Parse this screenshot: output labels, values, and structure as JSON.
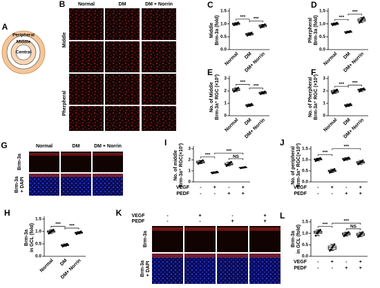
{
  "panel_A": {
    "letter": "A",
    "regions": [
      "Peripheral",
      "Middle",
      "Central"
    ]
  },
  "panel_B": {
    "letter": "B",
    "columns": [
      "Normal",
      "DM",
      "DM + Norrin"
    ],
    "rows": [
      "Middle",
      "Pherpheral"
    ]
  },
  "panel_G": {
    "letter": "G",
    "columns": [
      "Normal",
      "DM",
      "DM + Norrin"
    ],
    "rows": [
      [
        "Brm-3a"
      ],
      [
        "Brm-3a",
        "+ DAPI"
      ]
    ]
  },
  "panel_K": {
    "letter": "K",
    "conditions": [
      {
        "name": "VEGF",
        "signs": [
          "-",
          "+",
          "-",
          "+"
        ]
      },
      {
        "name": "PEDF",
        "signs": [
          "-",
          "-",
          "+",
          "+"
        ]
      }
    ],
    "rows": [
      [
        "Brm-3a"
      ],
      [
        "Brm-3a",
        "+ DAPI"
      ]
    ]
  },
  "chart_data": [
    {
      "type": "box",
      "panel": "C",
      "ylabel": [
        "Middle",
        "Brm-3a (fold)"
      ],
      "categories": [
        "Normal",
        "DM",
        "DM+ Norrin"
      ],
      "ylim": [
        0,
        1.5
      ],
      "yticks": [
        {
          "value": 0,
          "label": "0.0"
        },
        0.5,
        {
          "value": 1,
          "label": "1.0"
        },
        1.5
      ],
      "boxes": [
        [
          0.95,
          0.97,
          1.0,
          1.03,
          1.05
        ],
        [
          0.55,
          0.57,
          0.6,
          0.63,
          0.66
        ],
        [
          0.86,
          0.89,
          0.93,
          0.96,
          0.98
        ]
      ],
      "points": [
        [
          0.95,
          0.98,
          1.0,
          1.02,
          1.05
        ],
        [
          0.55,
          0.58,
          0.6,
          0.62,
          0.66
        ],
        [
          0.86,
          0.9,
          0.93,
          0.95,
          0.98
        ]
      ],
      "annotations": [
        {
          "label": "***",
          "between": [
            0,
            1
          ]
        },
        {
          "label": "***",
          "between": [
            1,
            2
          ]
        }
      ]
    },
    {
      "type": "box",
      "panel": "D",
      "ylabel": [
        "Pherpheral",
        "Brm-3a (fold)"
      ],
      "categories": [
        "Normal",
        "DM",
        "DM+ Norrin"
      ],
      "ylim": [
        0,
        1.5
      ],
      "yticks": [
        {
          "value": 0,
          "label": "0.0"
        },
        0.5,
        {
          "value": 1,
          "label": "1.0"
        },
        1.5
      ],
      "boxes": [
        [
          0.95,
          0.98,
          1.0,
          1.02,
          1.04
        ],
        [
          0.65,
          0.67,
          0.68,
          0.7,
          0.72
        ],
        [
          1.05,
          1.1,
          1.15,
          1.2,
          1.25
        ]
      ],
      "points": [
        [
          0.95,
          0.98,
          1.0,
          1.02,
          1.04
        ],
        [
          0.65,
          0.67,
          0.68,
          0.7,
          0.72
        ],
        [
          1.05,
          1.1,
          1.15,
          1.2,
          1.25
        ]
      ],
      "annotations": [
        {
          "label": "***",
          "between": [
            0,
            1
          ]
        },
        {
          "label": "***",
          "between": [
            1,
            2
          ]
        }
      ]
    },
    {
      "type": "box",
      "panel": "E",
      "ylabel": [
        "No. of Middle",
        "Brm-3a⁺ RGC (×10³)"
      ],
      "categories": [
        "Normal",
        "DM",
        "DM+ Norrin"
      ],
      "ylim": [
        0,
        3
      ],
      "yticks": [
        0,
        1,
        2,
        3
      ],
      "boxes": [
        [
          1.95,
          2.02,
          2.1,
          2.18,
          2.25
        ],
        [
          0.75,
          0.8,
          0.86,
          0.9,
          0.95
        ],
        [
          1.75,
          1.78,
          1.85,
          1.9,
          1.95
        ]
      ],
      "points": [
        [
          1.95,
          2.05,
          2.1,
          2.15,
          2.25
        ],
        [
          0.75,
          0.82,
          0.86,
          0.88,
          0.95
        ],
        [
          1.75,
          1.8,
          1.85,
          1.88,
          1.95
        ]
      ],
      "annotations": [
        {
          "label": "***",
          "between": [
            0,
            1
          ]
        },
        {
          "label": "***",
          "between": [
            1,
            2
          ]
        }
      ]
    },
    {
      "type": "box",
      "panel": "F",
      "ylabel": [
        "No. of Pherpheral",
        "Brm-3a⁺ RGC (×10³)"
      ],
      "categories": [
        "Normal",
        "DM",
        "DM+ Norrin"
      ],
      "ylim": [
        0,
        3
      ],
      "yticks": [
        0,
        1,
        2,
        3
      ],
      "boxes": [
        [
          1.8,
          1.88,
          1.95,
          2.02,
          2.1
        ],
        [
          0.75,
          0.8,
          0.85,
          0.9,
          0.95
        ],
        [
          1.95,
          2.05,
          2.1,
          2.15,
          2.2
        ]
      ],
      "points": [
        [
          1.8,
          1.9,
          1.95,
          2.0,
          2.1
        ],
        [
          0.75,
          0.8,
          0.85,
          0.9,
          0.95
        ],
        [
          1.95,
          2.05,
          2.1,
          2.15,
          2.2
        ]
      ],
      "annotations": [
        {
          "label": "***",
          "between": [
            0,
            1
          ]
        },
        {
          "label": "***",
          "between": [
            1,
            2
          ]
        }
      ]
    },
    {
      "type": "box",
      "panel": "H",
      "ylabel": [
        "Brm-3a",
        "in GCL (fold)"
      ],
      "categories": [
        "Normal",
        "DM",
        "DM+ Norrin"
      ],
      "ylim": [
        0,
        1.5
      ],
      "yticks": [
        {
          "value": 0,
          "label": "0.0"
        },
        0.5,
        {
          "value": 1,
          "label": "1.0"
        },
        1.5
      ],
      "boxes": [
        [
          0.92,
          0.97,
          1.0,
          1.03,
          1.07
        ],
        [
          0.4,
          0.43,
          0.45,
          0.47,
          0.5
        ],
        [
          0.9,
          0.93,
          0.95,
          0.97,
          1.0
        ]
      ],
      "points": [
        [
          0.92,
          0.97,
          1.0,
          1.03,
          1.07
        ],
        [
          0.4,
          0.43,
          0.45,
          0.47,
          0.5
        ],
        [
          0.9,
          0.93,
          0.95,
          0.97,
          1.0
        ]
      ],
      "annotations": [
        {
          "label": "***",
          "between": [
            0,
            1
          ]
        },
        {
          "label": "***",
          "between": [
            1,
            2
          ]
        }
      ]
    },
    {
      "type": "box",
      "panel": "I",
      "ylabel": [
        "No. of middle",
        "Brm-3a⁺ RGC(×10³)"
      ],
      "treatments": [
        {
          "name": "VEGF",
          "signs": [
            "-",
            "+",
            "-",
            "+"
          ]
        },
        {
          "name": "PEDF",
          "signs": [
            "-",
            "-",
            "+",
            "+"
          ]
        }
      ],
      "ylim": [
        0,
        3
      ],
      "yticks": [
        0,
        1,
        2,
        3
      ],
      "boxes": [
        [
          1.65,
          1.72,
          1.8,
          1.88,
          1.95
        ],
        [
          0.78,
          0.82,
          0.85,
          0.88,
          0.92
        ],
        [
          1.45,
          1.55,
          1.6,
          1.7,
          1.8
        ],
        [
          1.25,
          1.28,
          1.3,
          1.32,
          1.35
        ]
      ],
      "points": [
        [
          1.65,
          1.72,
          1.8,
          1.88,
          1.95
        ],
        [
          0.78,
          0.82,
          0.85,
          0.88,
          0.92
        ],
        [
          1.45,
          1.55,
          1.6,
          1.7,
          1.8
        ],
        [
          1.25,
          1.28,
          1.3,
          1.32,
          1.35
        ]
      ],
      "annotations": [
        {
          "label": "***",
          "between": [
            0,
            1
          ]
        },
        {
          "label": "***",
          "between": [
            1,
            3
          ]
        },
        {
          "label": "NS",
          "between": [
            2,
            3
          ]
        }
      ]
    },
    {
      "type": "box",
      "panel": "J",
      "ylabel": [
        "No. of peripheral",
        "Brm-3a⁺ RGC(×10³)"
      ],
      "treatments": [
        {
          "name": "VEGF",
          "signs": [
            "-",
            "+",
            "-",
            "+"
          ]
        },
        {
          "name": "PEDF",
          "signs": [
            "-",
            "-",
            "+",
            "+"
          ]
        }
      ],
      "ylim": [
        0,
        1.5
      ],
      "yticks": [
        {
          "value": 0,
          "label": "0.0"
        },
        0.5,
        {
          "value": 1,
          "label": "1.0"
        },
        1.5
      ],
      "boxes": [
        [
          0.95,
          1.0,
          1.02,
          1.05,
          1.08
        ],
        [
          0.42,
          0.47,
          0.5,
          0.53,
          0.58
        ],
        [
          0.98,
          1.02,
          1.05,
          1.07,
          1.1
        ],
        [
          0.8,
          0.85,
          0.88,
          0.92,
          0.97
        ]
      ],
      "points": [
        [
          0.95,
          1.0,
          1.02,
          1.05,
          1.08
        ],
        [
          0.42,
          0.47,
          0.5,
          0.53,
          0.58
        ],
        [
          0.98,
          1.02,
          1.05,
          1.07,
          1.1
        ],
        [
          0.8,
          0.85,
          0.88,
          0.92,
          0.97
        ]
      ],
      "annotations": [
        {
          "label": "***",
          "between": [
            0,
            1
          ]
        },
        {
          "label": "***",
          "between": [
            1,
            3
          ]
        }
      ]
    },
    {
      "type": "box",
      "panel": "L",
      "ylabel": [
        "Brm-3a",
        "in GCL (fold)"
      ],
      "treatments": [
        {
          "name": "VEGF",
          "signs": [
            "-",
            "+",
            "-",
            "+"
          ]
        },
        {
          "name": "PEDF",
          "signs": [
            "-",
            "-",
            "+",
            "+"
          ]
        }
      ],
      "ylim": [
        0,
        1.5
      ],
      "yticks": [
        {
          "value": 0,
          "label": "0.0"
        },
        0.5,
        {
          "value": 1,
          "label": "1.0"
        },
        1.5
      ],
      "boxes": [
        [
          0.9,
          1.0,
          1.05,
          1.1,
          1.15
        ],
        [
          0.25,
          0.3,
          0.38,
          0.45,
          0.52
        ],
        [
          0.88,
          0.93,
          0.97,
          1.02,
          1.05
        ],
        [
          0.85,
          0.9,
          0.95,
          1.0,
          1.05
        ]
      ],
      "points": [
        [
          0.9,
          1.0,
          1.05,
          1.1,
          1.15
        ],
        [
          0.25,
          0.3,
          0.38,
          0.45,
          0.52
        ],
        [
          0.88,
          0.93,
          0.97,
          1.02,
          1.05
        ],
        [
          0.85,
          0.9,
          0.95,
          1.0,
          1.05
        ]
      ],
      "annotations": [
        {
          "label": "***",
          "between": [
            0,
            1
          ]
        },
        {
          "label": "***",
          "between": [
            1,
            3
          ]
        },
        {
          "label": "NS",
          "between": [
            2,
            3
          ]
        }
      ]
    }
  ]
}
